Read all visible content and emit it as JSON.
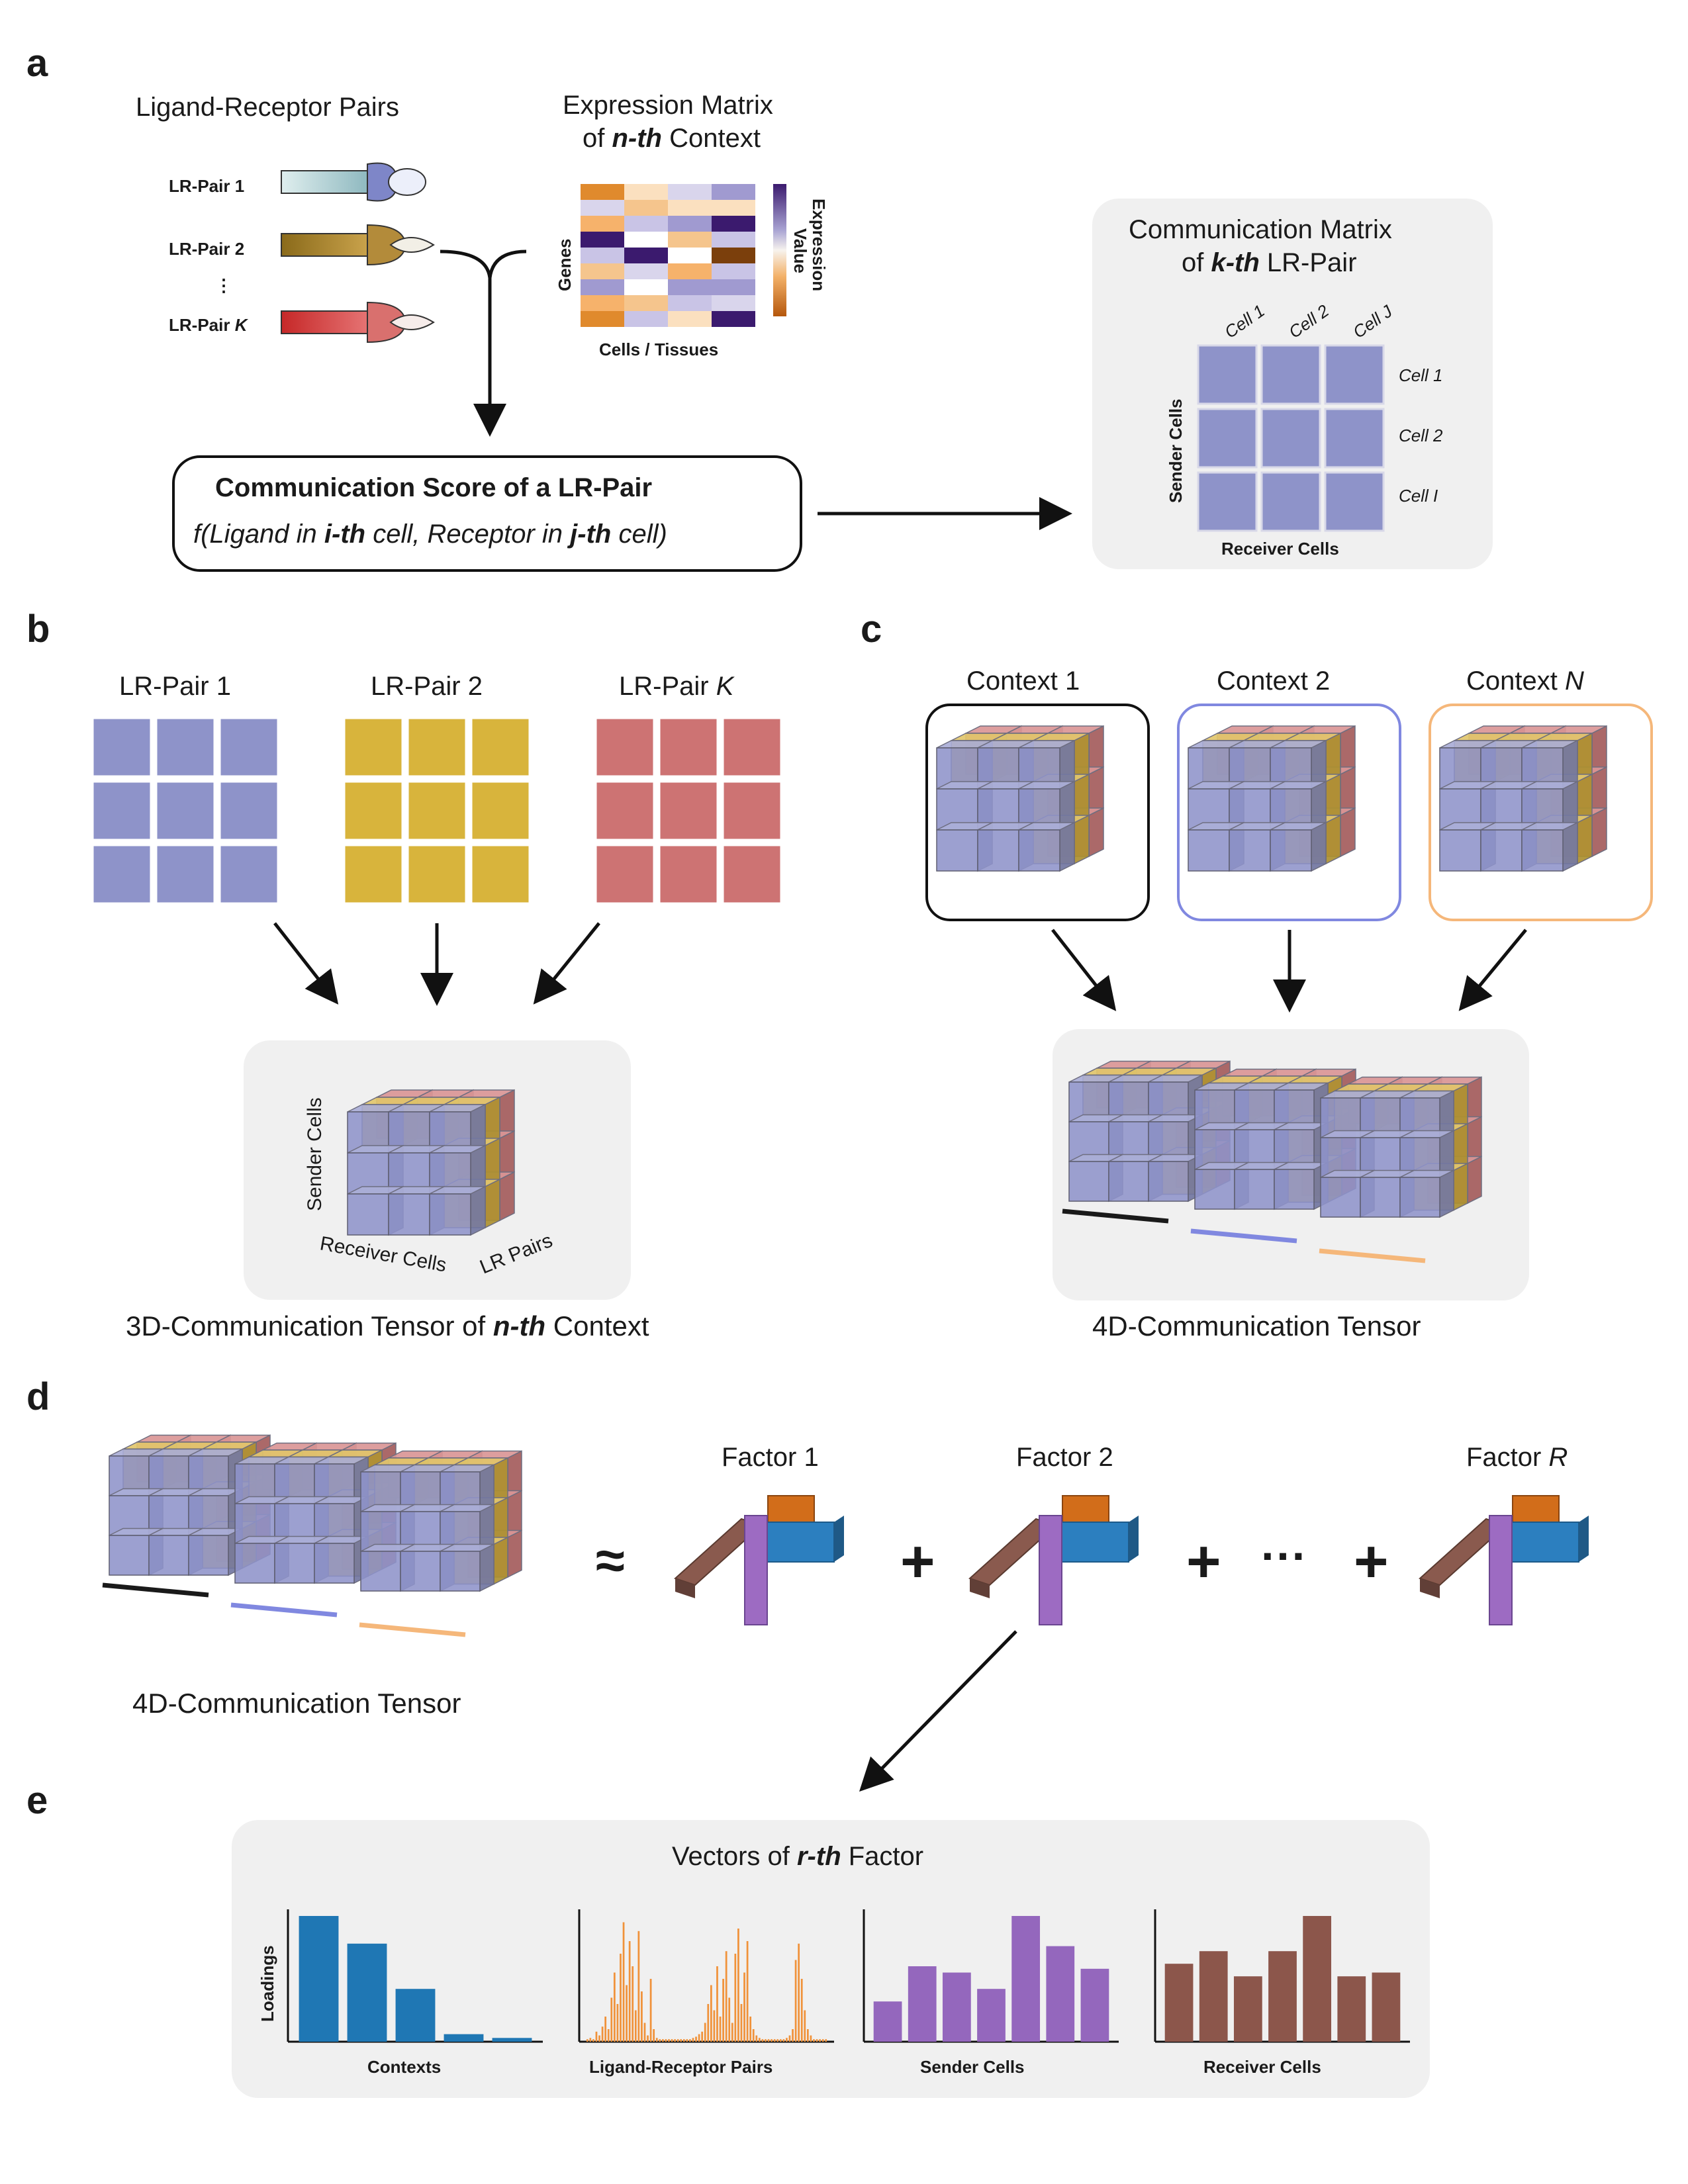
{
  "colors": {
    "blue": "#8e93c9",
    "yellow": "#d8b43c",
    "red": "#cd7373",
    "ctx1_outline": "#1a1a1a",
    "ctx2_outline": "#8088e0",
    "ctxN_outline": "#f5b77a",
    "factor_brown": "#8a5a4e",
    "factor_purple": "#9d6bc2",
    "factor_blue": "#2c7fbf",
    "factor_orange": "#d26d1a",
    "bar_contexts": "#1f77b4",
    "bar_lr": "#f0923a",
    "bar_sender": "#9467bd",
    "bar_receiver": "#8c564b",
    "panel_bg": "#f0f0f0"
  },
  "panel_a": {
    "label": "a",
    "lr_title": "Ligand-Receptor Pairs",
    "lr_pairs": [
      {
        "prefix": "LR-Pair ",
        "suffix": "1"
      },
      {
        "prefix": "LR-Pair ",
        "suffix": "2"
      },
      {
        "prefix": "LR-Pair ",
        "suffix": "K"
      }
    ],
    "ellipsis": "⋮",
    "expr_title_line1": "Expression Matrix",
    "expr_title_pre": "of ",
    "expr_title_em": "n-th",
    "expr_title_post": " Context",
    "genes_label": "Genes",
    "cells_label": "Cells / Tissues",
    "expr_value_line1": "Expression",
    "expr_value_line2": "Value",
    "score_title": "Communication Score of a LR-Pair",
    "score_f1": "f(Ligand in ",
    "score_i": "i-th",
    "score_f2": " cell, Receptor in ",
    "score_j": "j-th",
    "score_f3": " cell)",
    "comm_title_line1": "Communication Matrix",
    "comm_title_pre": "of ",
    "comm_title_em": "k-th",
    "comm_title_post": " LR-Pair",
    "col_cells": [
      "Cell 1",
      "Cell 2",
      "Cell J"
    ],
    "row_cells": [
      "Cell 1",
      "Cell 2",
      "Cell I"
    ],
    "sender_label": "Sender Cells",
    "receiver_label": "Receiver Cells"
  },
  "panel_b": {
    "label": "b",
    "matrices": [
      {
        "prefix": "LR-Pair ",
        "suffix": "1"
      },
      {
        "prefix": "LR-Pair ",
        "suffix": "2"
      },
      {
        "prefix": "LR-Pair ",
        "suffix": "K"
      }
    ],
    "sender_label": "Sender Cells",
    "receiver_label": "Receiver Cells",
    "lr_axis_label": "LR Pairs",
    "caption_pre": "3D-Communication Tensor of ",
    "caption_em": "n-th",
    "caption_post": " Context"
  },
  "panel_c": {
    "label": "c",
    "contexts": [
      {
        "prefix": "Context ",
        "suffix": "1"
      },
      {
        "prefix": "Context ",
        "suffix": "2"
      },
      {
        "prefix": "Context ",
        "suffix": "N"
      }
    ],
    "caption": "4D-Communication Tensor"
  },
  "panel_d": {
    "label": "d",
    "caption": "4D-Communication Tensor",
    "approx": "≈",
    "plus": "+",
    "dots": "···",
    "factors": [
      {
        "prefix": "Factor ",
        "suffix": "1"
      },
      {
        "prefix": "Factor ",
        "suffix": "2"
      },
      {
        "prefix": "Factor ",
        "suffix": "R"
      }
    ]
  },
  "panel_e": {
    "label": "e",
    "title_pre": "Vectors of ",
    "title_em": "r-th",
    "title_post": " Factor",
    "ylabel": "Loadings",
    "subplots": [
      {
        "xlabel": "Contexts",
        "color_key": "bar_contexts",
        "ymax": 1.0,
        "values": [
          1.0,
          0.78,
          0.42,
          0.06,
          0.03
        ]
      },
      {
        "xlabel": "Ligand-Receptor Pairs",
        "color_key": "bar_lr",
        "ymax": 1.0,
        "values": [
          0.02,
          0.03,
          0.02,
          0.08,
          0.05,
          0.12,
          0.2,
          0.1,
          0.35,
          0.55,
          0.3,
          0.7,
          0.95,
          0.45,
          0.8,
          0.6,
          0.25,
          0.88,
          0.4,
          0.15,
          0.05,
          0.5,
          0.1,
          0.03,
          0.02,
          0.02,
          0.02,
          0.02,
          0.02,
          0.02,
          0.02,
          0.02,
          0.02,
          0.02,
          0.02,
          0.03,
          0.04,
          0.06,
          0.08,
          0.15,
          0.3,
          0.45,
          0.25,
          0.6,
          0.2,
          0.5,
          0.72,
          0.35,
          0.15,
          0.7,
          0.9,
          0.3,
          0.55,
          0.8,
          0.2,
          0.1,
          0.05,
          0.03,
          0.02,
          0.02,
          0.02,
          0.02,
          0.02,
          0.02,
          0.02,
          0.02,
          0.03,
          0.05,
          0.1,
          0.65,
          0.78,
          0.5,
          0.25,
          0.1,
          0.05,
          0.02,
          0.02,
          0.02,
          0.02,
          0.02
        ]
      },
      {
        "xlabel": "Sender Cells",
        "color_key": "bar_sender",
        "ymax": 1.0,
        "values": [
          0.32,
          0.6,
          0.55,
          0.42,
          1.0,
          0.76,
          0.58
        ]
      },
      {
        "xlabel": "Receiver Cells",
        "color_key": "bar_receiver",
        "ymax": 1.0,
        "values": [
          0.62,
          0.72,
          0.52,
          0.72,
          1.0,
          0.52,
          0.55
        ]
      }
    ]
  }
}
